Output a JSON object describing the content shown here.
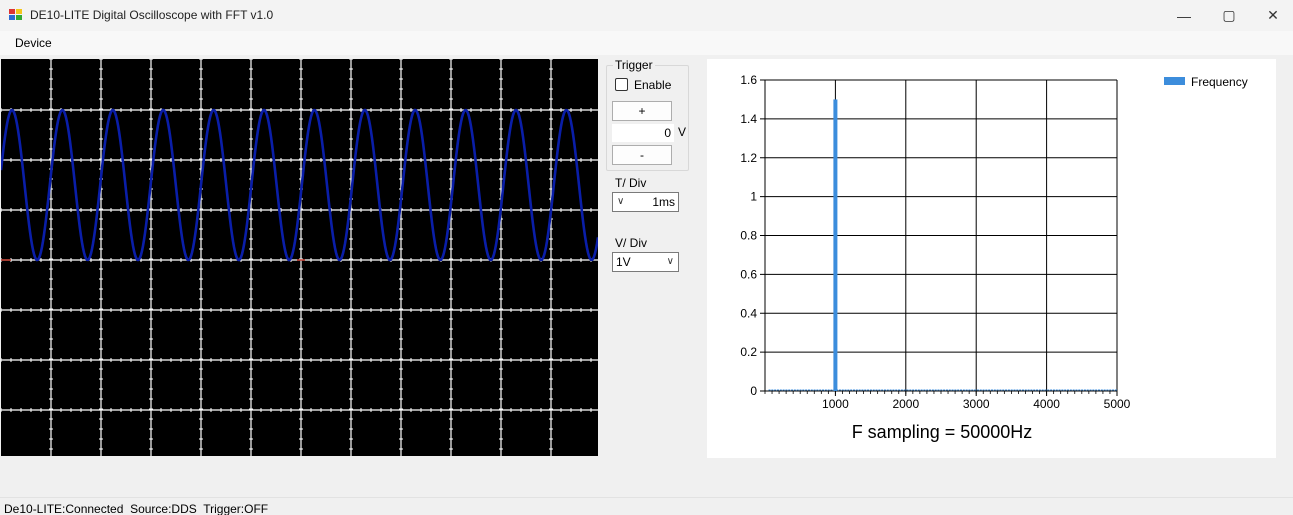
{
  "window": {
    "title": "DE10-LITE Digital Oscilloscope with FFT v1.0",
    "minimize_icon": "minimize-icon",
    "maximize_icon": "maximize-icon",
    "close_icon": "close-icon"
  },
  "menu": {
    "items": [
      "Device"
    ]
  },
  "trigger": {
    "group_title": "Trigger",
    "enable_label": "Enable",
    "enabled": false,
    "plus_label": "+",
    "minus_label": "-",
    "level": "0",
    "unit": "V"
  },
  "tdiv": {
    "label": "T/ Div",
    "value": "1ms"
  },
  "vdiv": {
    "label": "V/ Div",
    "value": "1V"
  },
  "scope": {
    "colors": {
      "background": "#000000",
      "grid": "#ffffff",
      "trace": "#0a1ea8",
      "marker": "#c0392b"
    },
    "trace_signal": {
      "cycles_visible": 12,
      "high_division": 1.0,
      "low_division": 4.0
    }
  },
  "chart_data": {
    "type": "bar",
    "title": "F sampling = 50000Hz",
    "legend": [
      "Frequency"
    ],
    "legend_position": "top-right",
    "xlabel": "",
    "ylabel": "",
    "x_ticks": [
      "1000",
      "2000",
      "3000",
      "4000",
      "5000"
    ],
    "y_ticks": [
      "0",
      "0.2",
      "0.4",
      "0.6",
      "0.8",
      "1",
      "1.2",
      "1.4",
      "1.6"
    ],
    "xlim": [
      0,
      5000
    ],
    "ylim": [
      0,
      1.6
    ],
    "grid": true,
    "series": [
      {
        "name": "Frequency",
        "color": "#3c8ddc",
        "x": [
          1000
        ],
        "values": [
          1.5
        ]
      }
    ]
  },
  "status": {
    "connection": "De10-LITE:Connected",
    "source": "Source:DDS",
    "trigger": "Trigger:OFF"
  }
}
